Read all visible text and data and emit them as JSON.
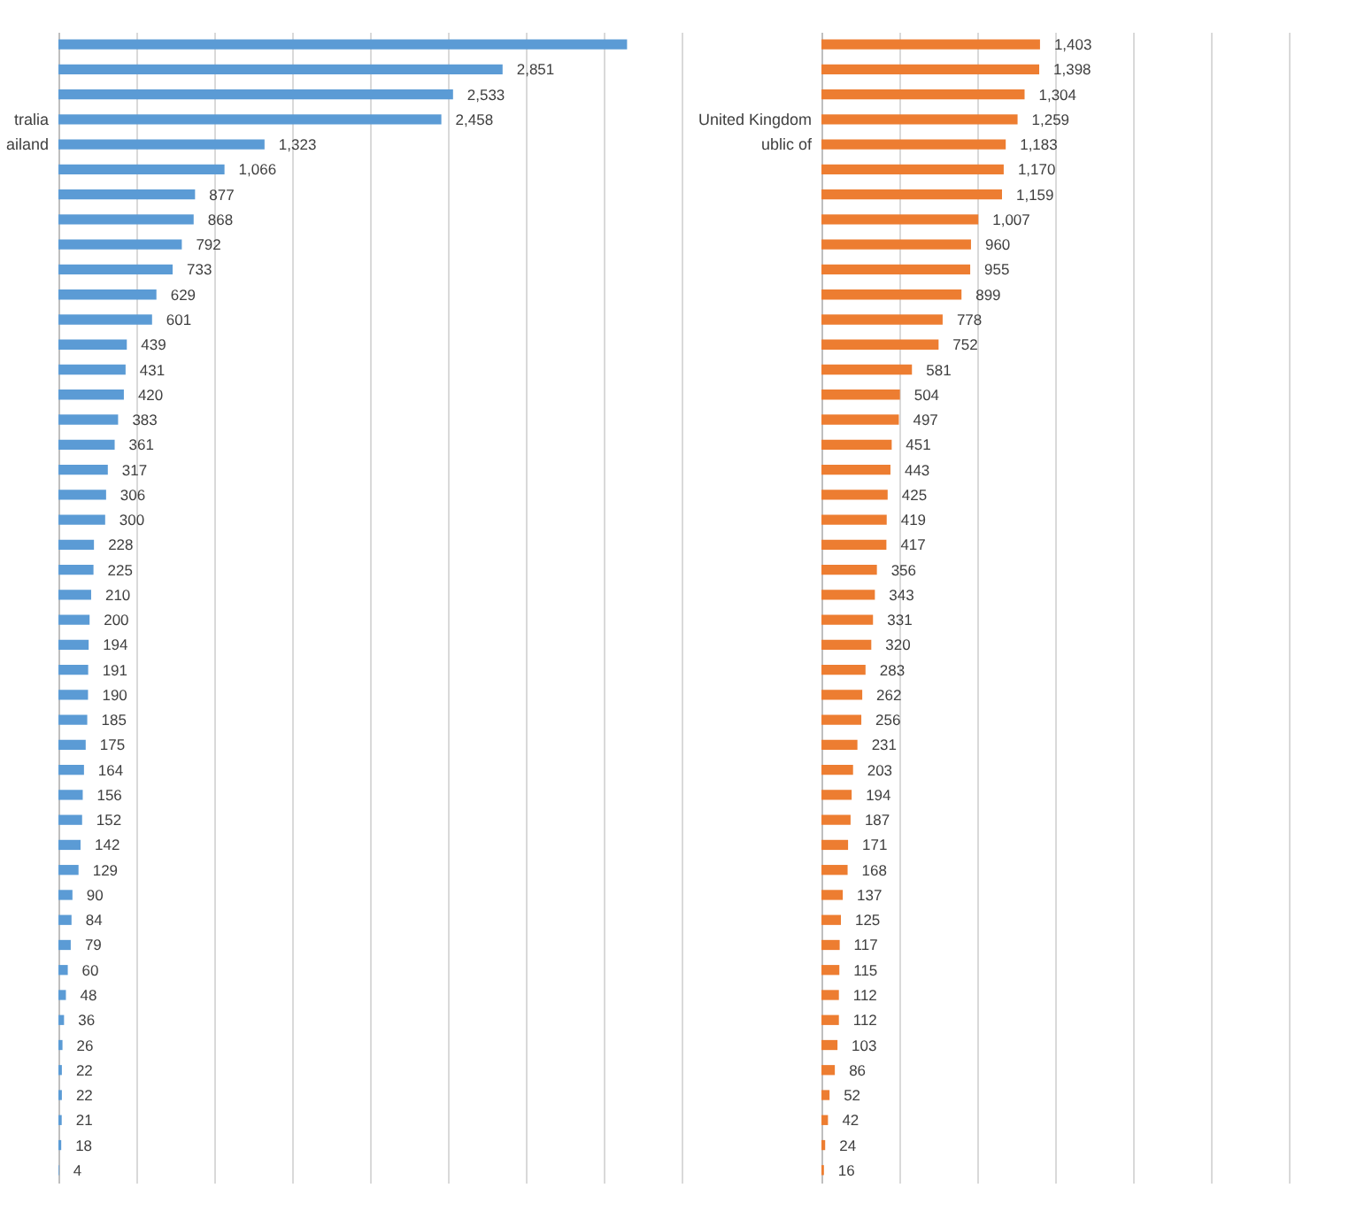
{
  "chart_data": [
    {
      "type": "bar",
      "orientation": "horizontal",
      "color": "#5b9bd5",
      "grid": "x",
      "tick_labels": "y",
      "categories": [
        null,
        null,
        null,
        "tralia",
        "ailand",
        null,
        null,
        null,
        null,
        null,
        null,
        null,
        null,
        null,
        null,
        null,
        null,
        null,
        null,
        null,
        null,
        null,
        null,
        null,
        null,
        null,
        null,
        null,
        null,
        null,
        null,
        null,
        null,
        null,
        null,
        null,
        null,
        null,
        null,
        null,
        null,
        null,
        null,
        null,
        null,
        null
      ],
      "values": [
        3650,
        2851,
        2533,
        2458,
        1323,
        1066,
        877,
        868,
        792,
        733,
        629,
        601,
        439,
        431,
        420,
        383,
        361,
        317,
        306,
        300,
        228,
        225,
        210,
        200,
        194,
        191,
        190,
        185,
        175,
        164,
        156,
        152,
        142,
        129,
        90,
        84,
        79,
        60,
        48,
        36,
        26,
        22,
        22,
        21,
        18,
        4
      ],
      "value_labels": [
        null,
        "2,851",
        "2,533",
        "2,458",
        "1,323",
        "1,066",
        "877",
        "868",
        "792",
        "733",
        "629",
        "601",
        "439",
        "431",
        "420",
        "383",
        "361",
        "317",
        "306",
        "300",
        "228",
        "225",
        "210",
        "200",
        "194",
        "191",
        "190",
        "185",
        "175",
        "164",
        "156",
        "152",
        "142",
        "129",
        "90",
        "84",
        "79",
        "60",
        "48",
        "36",
        "26",
        "22",
        "22",
        "21",
        "18",
        "4"
      ],
      "xlim": [
        0,
        4000
      ],
      "xticks": [
        {
          "value": 0,
          "label": null
        },
        {
          "value": 500,
          "label": null
        },
        {
          "value": 1000,
          "label": null
        },
        {
          "value": 1500,
          "label": null
        },
        {
          "value": 2000,
          "label": null
        },
        {
          "value": 2500,
          "label": null
        },
        {
          "value": 3000,
          "label": null
        },
        {
          "value": 3500,
          "label": null
        },
        {
          "value": 4000,
          "label": null
        }
      ]
    },
    {
      "type": "bar",
      "orientation": "horizontal",
      "color": "#ed7d31",
      "grid": "x",
      "tick_labels": "y",
      "categories": [
        null,
        null,
        null,
        "United Kingdom",
        "ublic of",
        null,
        null,
        null,
        null,
        null,
        null,
        null,
        null,
        null,
        null,
        null,
        null,
        null,
        null,
        null,
        null,
        null,
        null,
        null,
        null,
        null,
        null,
        null,
        null,
        null,
        null,
        null,
        null,
        null,
        null,
        null,
        null,
        null,
        null,
        null,
        null,
        null,
        null,
        null,
        null,
        null
      ],
      "values": [
        1403,
        1398,
        1304,
        1259,
        1183,
        1170,
        1159,
        1007,
        960,
        955,
        899,
        778,
        752,
        581,
        504,
        497,
        451,
        443,
        425,
        419,
        417,
        356,
        343,
        331,
        320,
        283,
        262,
        256,
        231,
        203,
        194,
        187,
        171,
        168,
        137,
        125,
        117,
        115,
        112,
        112,
        103,
        86,
        52,
        42,
        24,
        16
      ],
      "value_labels": [
        "1,403",
        "1,398",
        "1,304",
        "1,259",
        "1,183",
        "1,170",
        "1,159",
        "1,007",
        "960",
        "955",
        "899",
        "778",
        "752",
        "581",
        "504",
        "497",
        "451",
        "443",
        "425",
        "419",
        "417",
        "356",
        "343",
        "331",
        "320",
        "283",
        "262",
        "256",
        "231",
        "203",
        "194",
        "187",
        "171",
        "168",
        "137",
        "125",
        "117",
        "115",
        "112",
        "112",
        "103",
        "86",
        "52",
        "42",
        "24",
        "16"
      ],
      "xlim": [
        0,
        3000
      ],
      "xticks": [
        {
          "value": 0,
          "label": null
        },
        {
          "value": 500,
          "label": null
        },
        {
          "value": 1000,
          "label": null
        },
        {
          "value": 1500,
          "label": null
        },
        {
          "value": 2000,
          "label": null
        },
        {
          "value": 2500,
          "label": null
        },
        {
          "value": 3000,
          "label": null
        }
      ]
    }
  ]
}
